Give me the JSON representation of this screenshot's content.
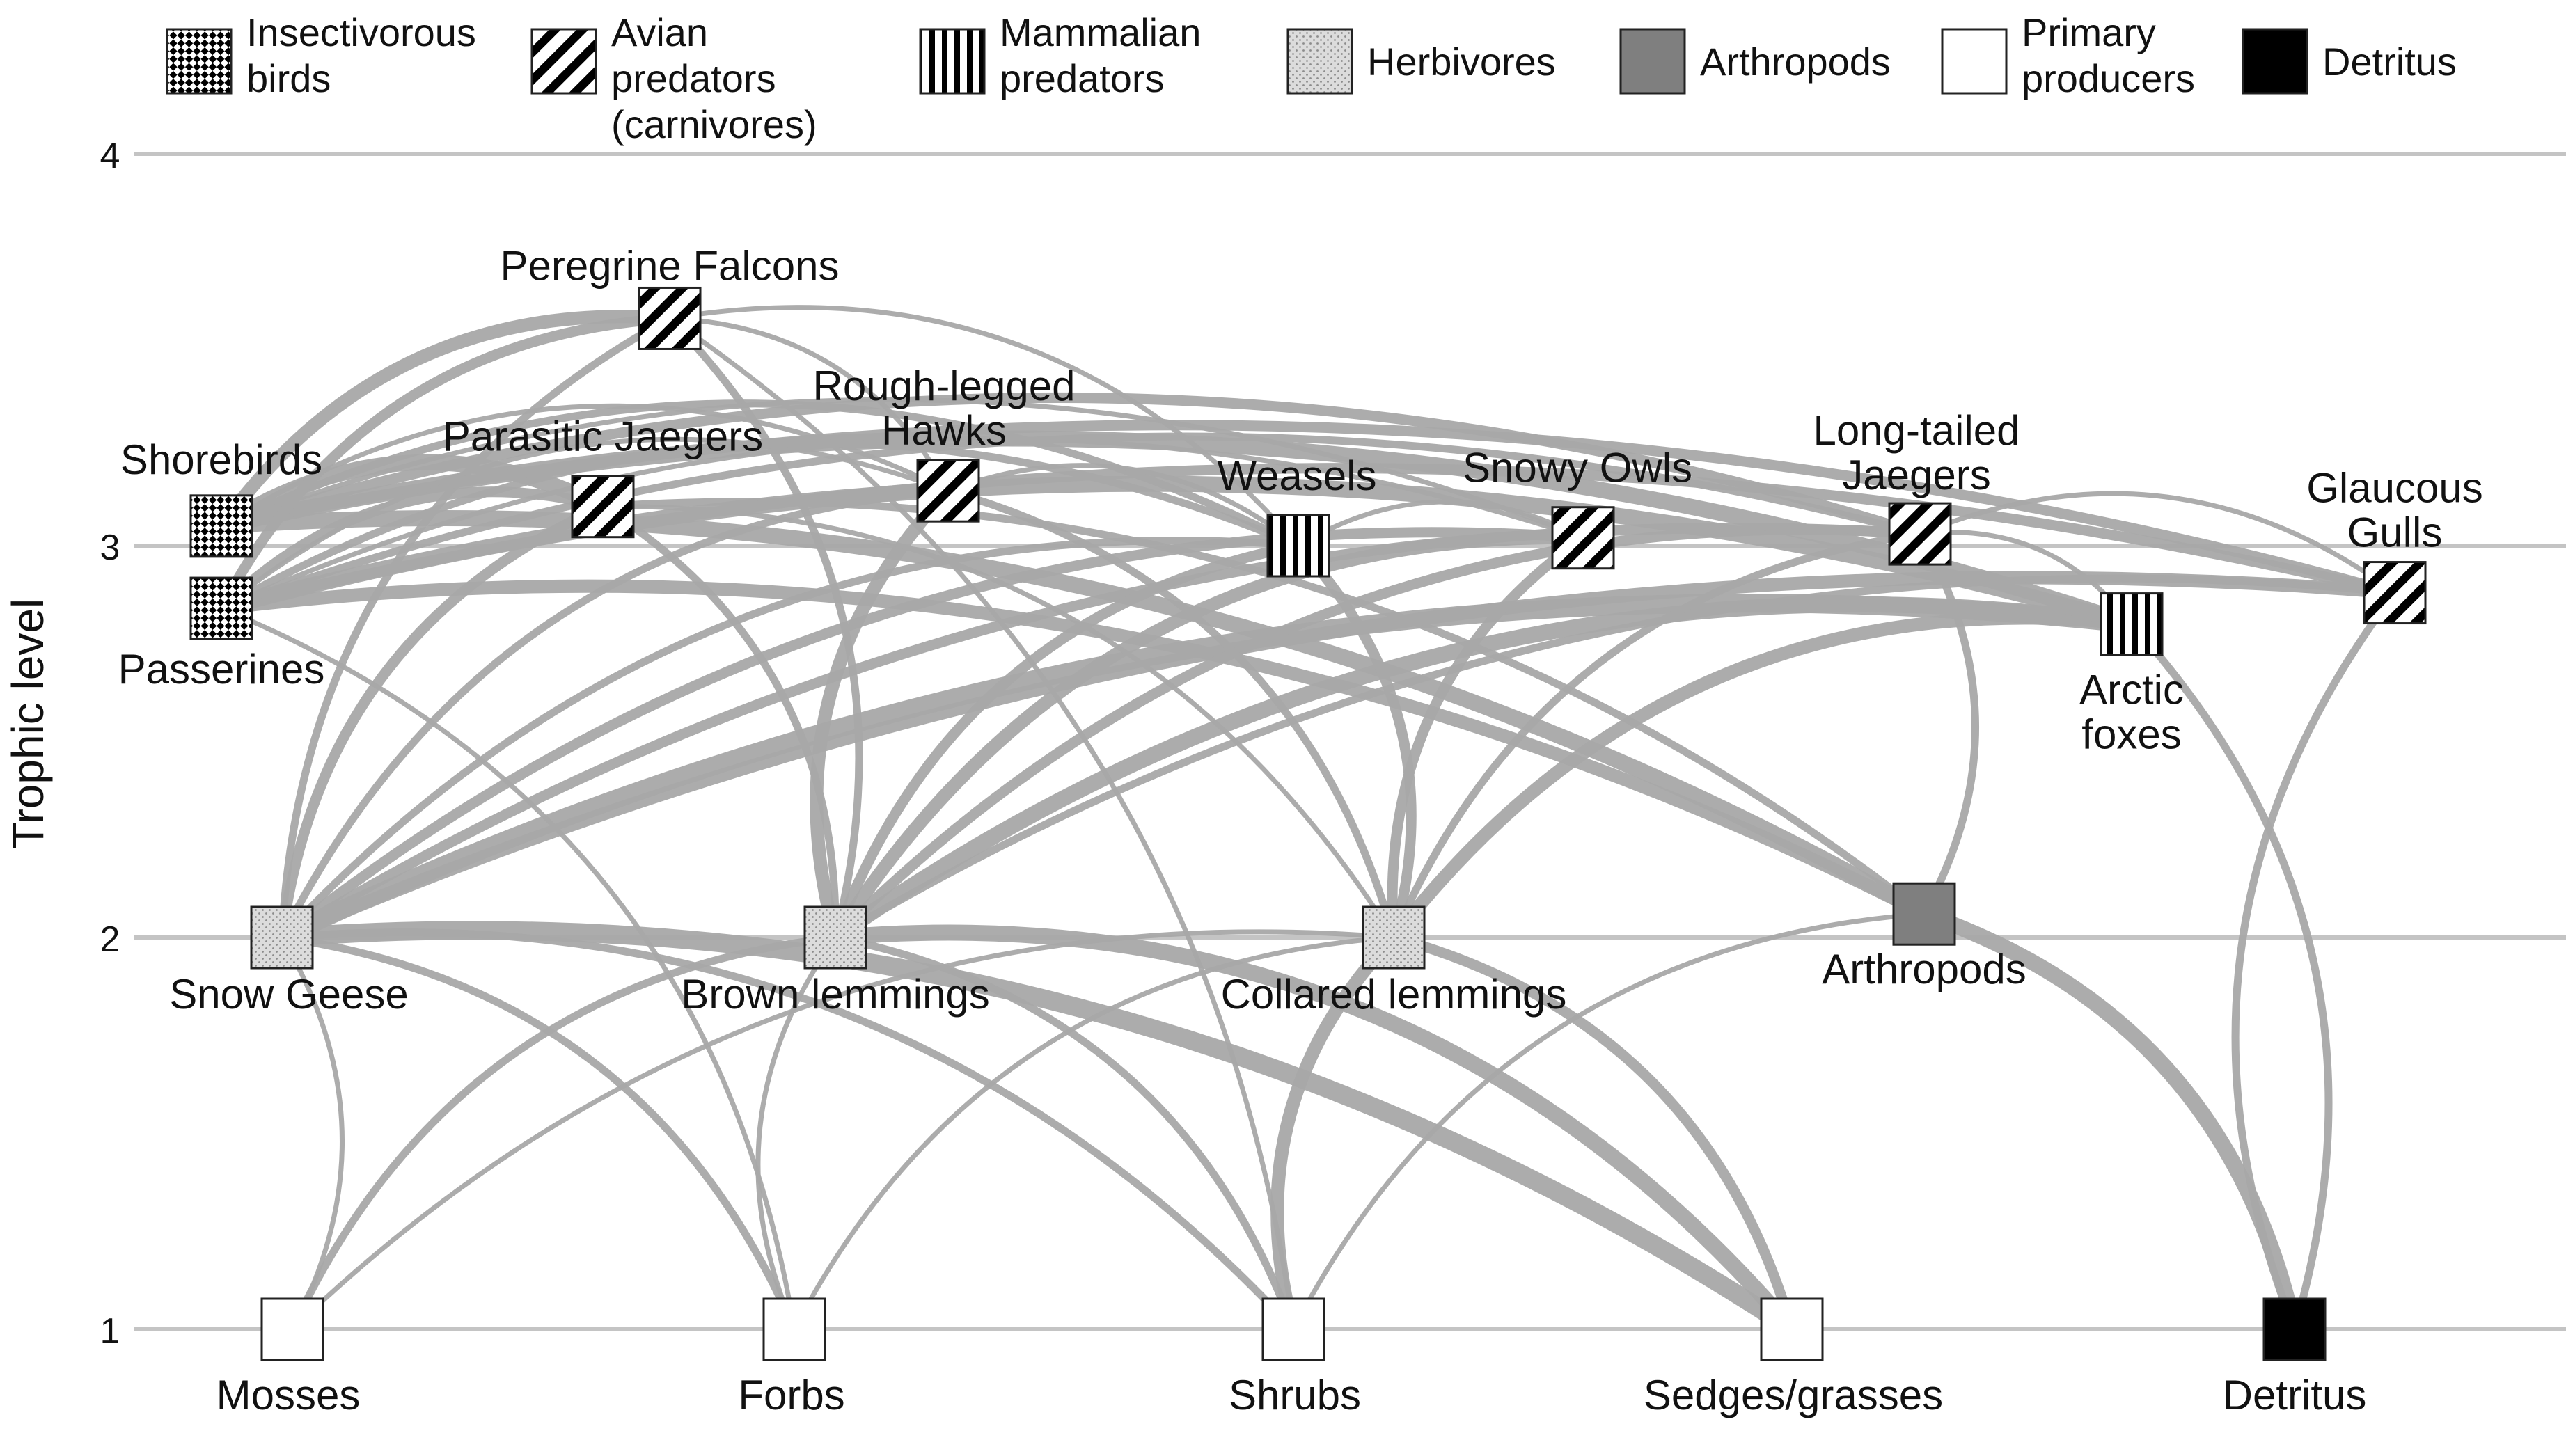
{
  "axis": {
    "title": "Trophic level",
    "levels": [
      "1",
      "2",
      "3",
      "4"
    ]
  },
  "legend": [
    {
      "key": "insectivorous",
      "lines": [
        "Insectivorous",
        "birds"
      ]
    },
    {
      "key": "avian",
      "lines": [
        "Avian",
        "predators",
        "(carnivores)"
      ]
    },
    {
      "key": "mammalian",
      "lines": [
        "Mammalian",
        "predators"
      ]
    },
    {
      "key": "herbivore",
      "lines": [
        "Herbivores"
      ]
    },
    {
      "key": "arthropod",
      "lines": [
        "Arthropods"
      ]
    },
    {
      "key": "producer",
      "lines": [
        "Primary",
        "producers"
      ]
    },
    {
      "key": "detritus",
      "lines": [
        "Detritus"
      ]
    }
  ],
  "nodes": [
    {
      "id": "peregrine",
      "lines": [
        "Peregrine Falcons"
      ],
      "group": "avian",
      "trophic": 3.58
    },
    {
      "id": "shorebirds",
      "lines": [
        "Shorebirds"
      ],
      "group": "insectivorous",
      "trophic": 3.05
    },
    {
      "id": "passerines",
      "lines": [
        "Passerines"
      ],
      "group": "insectivorous",
      "trophic": 2.84
    },
    {
      "id": "parasitic",
      "lines": [
        "Parasitic Jaegers"
      ],
      "group": "avian",
      "trophic": 3.1
    },
    {
      "id": "roughlegged",
      "lines": [
        "Rough-legged",
        "Hawks"
      ],
      "group": "avian",
      "trophic": 3.14
    },
    {
      "id": "weasels",
      "lines": [
        "Weasels"
      ],
      "group": "mammalian",
      "trophic": 3.0
    },
    {
      "id": "snowyowls",
      "lines": [
        "Snowy Owls"
      ],
      "group": "avian",
      "trophic": 3.02
    },
    {
      "id": "longtailed",
      "lines": [
        "Long-tailed",
        "Jaegers"
      ],
      "group": "avian",
      "trophic": 3.03
    },
    {
      "id": "arcticfoxes",
      "lines": [
        "Arctic",
        "foxes"
      ],
      "group": "mammalian",
      "trophic": 2.8
    },
    {
      "id": "glaucous",
      "lines": [
        "Glaucous",
        "Gulls"
      ],
      "group": "avian",
      "trophic": 2.88
    },
    {
      "id": "snowgeese",
      "lines": [
        "Snow Geese"
      ],
      "group": "herbivore",
      "trophic": 2.0
    },
    {
      "id": "brownlemmings",
      "lines": [
        "Brown lemmings"
      ],
      "group": "herbivore",
      "trophic": 2.0
    },
    {
      "id": "collaredlemmings",
      "lines": [
        "Collared lemmings"
      ],
      "group": "herbivore",
      "trophic": 2.0
    },
    {
      "id": "arthropods",
      "lines": [
        "Arthropods"
      ],
      "group": "arthropod",
      "trophic": 2.06
    },
    {
      "id": "mosses",
      "lines": [
        "Mosses"
      ],
      "group": "producer",
      "trophic": 1.0
    },
    {
      "id": "forbs",
      "lines": [
        "Forbs"
      ],
      "group": "producer",
      "trophic": 1.0
    },
    {
      "id": "shrubs",
      "lines": [
        "Shrubs"
      ],
      "group": "producer",
      "trophic": 1.0
    },
    {
      "id": "sedges",
      "lines": [
        "Sedges/grasses"
      ],
      "group": "producer",
      "trophic": 1.0
    },
    {
      "id": "detritus",
      "lines": [
        "Detritus"
      ],
      "group": "detritus",
      "trophic": 1.0
    }
  ],
  "links": [
    {
      "from": "mosses",
      "to": "snowgeese",
      "weight": 1
    },
    {
      "from": "mosses",
      "to": "brownlemmings",
      "weight": 2
    },
    {
      "from": "mosses",
      "to": "collaredlemmings",
      "weight": 1
    },
    {
      "from": "forbs",
      "to": "snowgeese",
      "weight": 2
    },
    {
      "from": "forbs",
      "to": "brownlemmings",
      "weight": 1
    },
    {
      "from": "forbs",
      "to": "collaredlemmings",
      "weight": 1
    },
    {
      "from": "forbs",
      "to": "passerines",
      "weight": 1
    },
    {
      "from": "shrubs",
      "to": "snowgeese",
      "weight": 2
    },
    {
      "from": "shrubs",
      "to": "brownlemmings",
      "weight": 2
    },
    {
      "from": "shrubs",
      "to": "collaredlemmings",
      "weight": 4
    },
    {
      "from": "shrubs",
      "to": "arthropods",
      "weight": 1
    },
    {
      "from": "shrubs",
      "to": "peregrine",
      "weight": 1
    },
    {
      "from": "sedges",
      "to": "snowgeese",
      "weight": 6
    },
    {
      "from": "sedges",
      "to": "brownlemmings",
      "weight": 5
    },
    {
      "from": "sedges",
      "to": "collaredlemmings",
      "weight": 3
    },
    {
      "from": "detritus",
      "to": "arthropods",
      "weight": 5
    },
    {
      "from": "detritus",
      "to": "arcticfoxes",
      "weight": 2
    },
    {
      "from": "detritus",
      "to": "glaucous",
      "weight": 2
    },
    {
      "from": "arthropods",
      "to": "shorebirds",
      "weight": 5
    },
    {
      "from": "arthropods",
      "to": "passerines",
      "weight": 4
    },
    {
      "from": "arthropods",
      "to": "longtailed",
      "weight": 2
    },
    {
      "from": "arthropods",
      "to": "parasitic",
      "weight": 2
    },
    {
      "from": "snowgeese",
      "to": "peregrine",
      "weight": 2
    },
    {
      "from": "snowgeese",
      "to": "parasitic",
      "weight": 3
    },
    {
      "from": "snowgeese",
      "to": "roughlegged",
      "weight": 2
    },
    {
      "from": "snowgeese",
      "to": "weasels",
      "weight": 2
    },
    {
      "from": "snowgeese",
      "to": "snowyowls",
      "weight": 3
    },
    {
      "from": "snowgeese",
      "to": "longtailed",
      "weight": 3
    },
    {
      "from": "snowgeese",
      "to": "arcticfoxes",
      "weight": 6
    },
    {
      "from": "snowgeese",
      "to": "glaucous",
      "weight": 4
    },
    {
      "from": "brownlemmings",
      "to": "peregrine",
      "weight": 2
    },
    {
      "from": "brownlemmings",
      "to": "parasitic",
      "weight": 2
    },
    {
      "from": "brownlemmings",
      "to": "roughlegged",
      "weight": 4
    },
    {
      "from": "brownlemmings",
      "to": "weasels",
      "weight": 3
    },
    {
      "from": "brownlemmings",
      "to": "snowyowls",
      "weight": 4
    },
    {
      "from": "brownlemmings",
      "to": "longtailed",
      "weight": 3
    },
    {
      "from": "brownlemmings",
      "to": "arcticfoxes",
      "weight": 5
    },
    {
      "from": "brownlemmings",
      "to": "glaucous",
      "weight": 2
    },
    {
      "from": "collaredlemmings",
      "to": "roughlegged",
      "weight": 2
    },
    {
      "from": "collaredlemmings",
      "to": "weasels",
      "weight": 3
    },
    {
      "from": "collaredlemmings",
      "to": "snowyowls",
      "weight": 3
    },
    {
      "from": "collaredlemmings",
      "to": "longtailed",
      "weight": 2
    },
    {
      "from": "collaredlemmings",
      "to": "arcticfoxes",
      "weight": 4
    },
    {
      "from": "collaredlemmings",
      "to": "parasitic",
      "weight": 1
    },
    {
      "from": "shorebirds",
      "to": "peregrine",
      "weight": 4
    },
    {
      "from": "shorebirds",
      "to": "parasitic",
      "weight": 5
    },
    {
      "from": "shorebirds",
      "to": "longtailed",
      "weight": 3
    },
    {
      "from": "shorebirds",
      "to": "arcticfoxes",
      "weight": 5
    },
    {
      "from": "shorebirds",
      "to": "glaucous",
      "weight": 3
    },
    {
      "from": "shorebirds",
      "to": "weasels",
      "weight": 2
    },
    {
      "from": "shorebirds",
      "to": "roughlegged",
      "weight": 1
    },
    {
      "from": "shorebirds",
      "to": "snowyowls",
      "weight": 1
    },
    {
      "from": "passerines",
      "to": "peregrine",
      "weight": 3
    },
    {
      "from": "passerines",
      "to": "parasitic",
      "weight": 3
    },
    {
      "from": "passerines",
      "to": "roughlegged",
      "weight": 1
    },
    {
      "from": "passerines",
      "to": "weasels",
      "weight": 2
    },
    {
      "from": "passerines",
      "to": "arcticfoxes",
      "weight": 5
    },
    {
      "from": "passerines",
      "to": "glaucous",
      "weight": 3
    },
    {
      "from": "passerines",
      "to": "longtailed",
      "weight": 2
    },
    {
      "from": "passerines",
      "to": "snowyowls",
      "weight": 1
    },
    {
      "from": "weasels",
      "to": "roughlegged",
      "weight": 1
    },
    {
      "from": "weasels",
      "to": "snowyowls",
      "weight": 1
    },
    {
      "from": "arcticfoxes",
      "to": "longtailed",
      "weight": 1
    },
    {
      "from": "glaucous",
      "to": "longtailed",
      "weight": 1
    },
    {
      "from": "peregrine",
      "to": "roughlegged",
      "weight": 1
    },
    {
      "from": "peregrine",
      "to": "weasels",
      "weight": 1
    }
  ],
  "colors": {
    "link": "#a8a8a8",
    "gridline": "#c4c4c4",
    "arthropod": "#7f7f7f",
    "herbivore": "#dcdcdc",
    "detritus": "#000000",
    "producer": "#ffffff",
    "text": "#111111"
  }
}
